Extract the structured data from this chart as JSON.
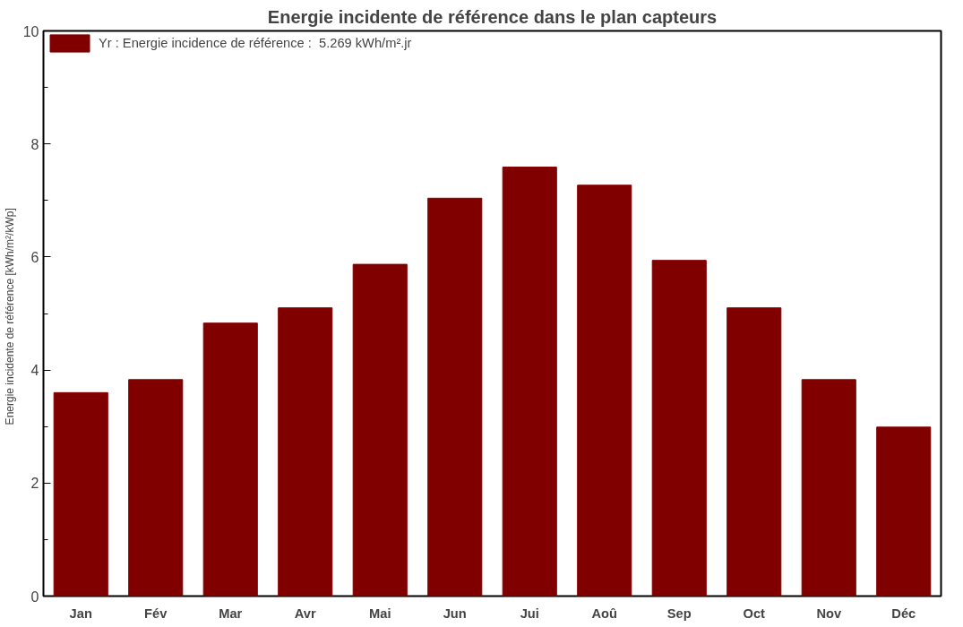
{
  "chart_data": {
    "type": "bar",
    "title": "Energie incidente de référence dans le plan capteurs",
    "ylabel": "Energie incidente de référence   [kWh/m²/kWp]",
    "categories": [
      "Jan",
      "Fév",
      "Mar",
      "Avr",
      "Mai",
      "Jun",
      "Jui",
      "Aoû",
      "Sep",
      "Oct",
      "Nov",
      "Déc"
    ],
    "series": [
      {
        "name": "Yr : Energie incidence de référence :  5.269 kWh/m².jr",
        "color": "#800000",
        "values": [
          3.6,
          3.83,
          4.83,
          5.1,
          5.87,
          7.04,
          7.59,
          7.27,
          5.94,
          5.1,
          3.83,
          2.99
        ]
      }
    ],
    "ylim": [
      0,
      10
    ],
    "yticks": [
      0,
      2,
      4,
      6,
      8,
      10
    ],
    "grid": false,
    "legend": "top left"
  }
}
